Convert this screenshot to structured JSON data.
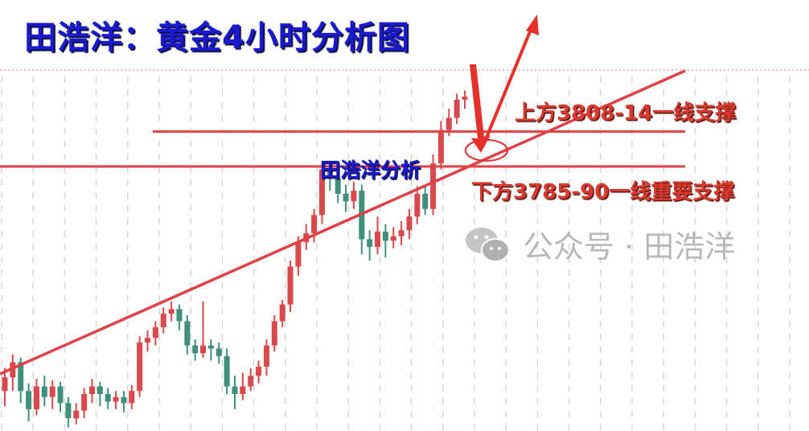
{
  "title": "田浩洋：黄金4小时分析图",
  "annotations": {
    "upper_support": "上方3808-14一线支撑",
    "lower_support": "下方3785-90一线重要支撑",
    "analyst_tag": "田浩洋分析"
  },
  "watermark": {
    "icon": "wechat-icon",
    "text": "公众号 · 田浩洋"
  },
  "colors": {
    "up": "#d9494b",
    "down": "#3f8f7a",
    "line": "#e04048",
    "title": "#1a1ad0",
    "label": "#d83a2e"
  },
  "chart_data": {
    "type": "candlestick",
    "timeframe": "4小时",
    "grid": "vertical dashed",
    "levels": [
      3811,
      3788
    ],
    "trendline": {
      "start": 3650,
      "end": 3850
    },
    "candles": [
      [
        3640,
        3655,
        3630,
        3649
      ],
      [
        3649,
        3664,
        3640,
        3659
      ],
      [
        3659,
        3662,
        3632,
        3640
      ],
      [
        3640,
        3645,
        3620,
        3628
      ],
      [
        3628,
        3648,
        3624,
        3643
      ],
      [
        3643,
        3650,
        3630,
        3636
      ],
      [
        3636,
        3647,
        3628,
        3643
      ],
      [
        3643,
        3646,
        3626,
        3632
      ],
      [
        3632,
        3636,
        3616,
        3622
      ],
      [
        3622,
        3632,
        3618,
        3627
      ],
      [
        3627,
        3642,
        3622,
        3638
      ],
      [
        3638,
        3648,
        3632,
        3643
      ],
      [
        3643,
        3646,
        3630,
        3638
      ],
      [
        3638,
        3642,
        3628,
        3633
      ],
      [
        3633,
        3640,
        3628,
        3636
      ],
      [
        3636,
        3640,
        3626,
        3632
      ],
      [
        3632,
        3644,
        3628,
        3640
      ],
      [
        3640,
        3676,
        3636,
        3672
      ],
      [
        3672,
        3680,
        3666,
        3675
      ],
      [
        3675,
        3686,
        3670,
        3682
      ],
      [
        3682,
        3695,
        3678,
        3691
      ],
      [
        3691,
        3699,
        3686,
        3694
      ],
      [
        3694,
        3697,
        3680,
        3686
      ],
      [
        3686,
        3690,
        3664,
        3670
      ],
      [
        3670,
        3674,
        3660,
        3665
      ],
      [
        3665,
        3699,
        3662,
        3670
      ],
      [
        3670,
        3674,
        3660,
        3668
      ],
      [
        3668,
        3672,
        3658,
        3663
      ],
      [
        3663,
        3668,
        3638,
        3643
      ],
      [
        3643,
        3650,
        3628,
        3638
      ],
      [
        3638,
        3652,
        3634,
        3643
      ],
      [
        3643,
        3655,
        3640,
        3650
      ],
      [
        3650,
        3660,
        3645,
        3656
      ],
      [
        3656,
        3674,
        3650,
        3670
      ],
      [
        3670,
        3690,
        3666,
        3686
      ],
      [
        3686,
        3700,
        3682,
        3697
      ],
      [
        3697,
        3726,
        3692,
        3722
      ],
      [
        3722,
        3742,
        3716,
        3738
      ],
      [
        3738,
        3750,
        3733,
        3744
      ],
      [
        3744,
        3760,
        3738,
        3756
      ],
      [
        3756,
        3790,
        3750,
        3786
      ],
      [
        3786,
        3790,
        3772,
        3780
      ],
      [
        3780,
        3784,
        3764,
        3770
      ],
      [
        3770,
        3776,
        3758,
        3765
      ],
      [
        3765,
        3778,
        3760,
        3772
      ],
      [
        3772,
        3776,
        3730,
        3740
      ],
      [
        3740,
        3746,
        3726,
        3735
      ],
      [
        3735,
        3755,
        3730,
        3745
      ],
      [
        3745,
        3750,
        3728,
        3739
      ],
      [
        3739,
        3748,
        3734,
        3742
      ],
      [
        3742,
        3752,
        3736,
        3746
      ],
      [
        3746,
        3760,
        3740,
        3755
      ],
      [
        3755,
        3775,
        3750,
        3770
      ],
      [
        3770,
        3775,
        3756,
        3760
      ],
      [
        3760,
        3796,
        3756,
        3790
      ],
      [
        3790,
        3818,
        3786,
        3812
      ],
      [
        3812,
        3826,
        3808,
        3820
      ],
      [
        3820,
        3836,
        3816,
        3832
      ],
      [
        3832,
        3838,
        3826,
        3834
      ]
    ]
  }
}
